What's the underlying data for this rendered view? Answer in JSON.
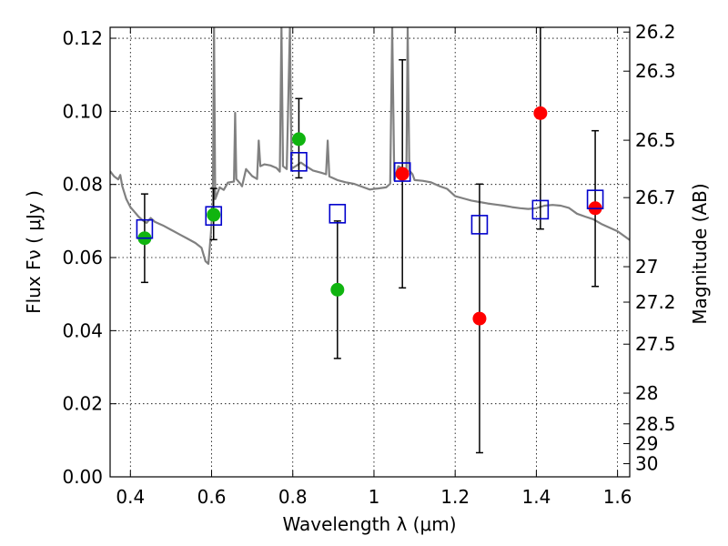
{
  "chart_data": {
    "type": "scatter",
    "xlabel": "Wavelength  λ (μm)",
    "ylabel": "Flux  Fν  ( μJy )",
    "ylabel_right": "Magnitude (AB)",
    "xlim": [
      0.35,
      1.63
    ],
    "ylim": [
      0.0,
      0.123
    ],
    "grid": true,
    "x_ticks": [
      {
        "value": 0.4,
        "label": "0.4"
      },
      {
        "value": 0.6,
        "label": "0.6"
      },
      {
        "value": 0.8,
        "label": "0.8"
      },
      {
        "value": 1.0,
        "label": "1"
      },
      {
        "value": 1.2,
        "label": "1.2"
      },
      {
        "value": 1.4,
        "label": "1.4"
      },
      {
        "value": 1.6,
        "label": "1.6"
      }
    ],
    "y_ticks": [
      {
        "value": 0.0,
        "label": "0.00"
      },
      {
        "value": 0.02,
        "label": "0.02"
      },
      {
        "value": 0.04,
        "label": "0.04"
      },
      {
        "value": 0.06,
        "label": "0.06"
      },
      {
        "value": 0.08,
        "label": "0.08"
      },
      {
        "value": 0.1,
        "label": "0.10"
      },
      {
        "value": 0.12,
        "label": "0.12"
      }
    ],
    "right_ticks": [
      {
        "flux": 0.1217,
        "label": "26.2"
      },
      {
        "flux": 0.111,
        "label": "26.3"
      },
      {
        "flux": 0.0921,
        "label": "26.5"
      },
      {
        "flux": 0.0764,
        "label": "26.7"
      },
      {
        "flux": 0.0575,
        "label": "27"
      },
      {
        "flux": 0.0478,
        "label": "27.2"
      },
      {
        "flux": 0.0363,
        "label": "27.5"
      },
      {
        "flux": 0.0229,
        "label": "28"
      },
      {
        "flux": 0.0145,
        "label": "28.5"
      },
      {
        "flux": 0.0091,
        "label": "29"
      },
      {
        "flux": 0.0036,
        "label": "30"
      }
    ],
    "series": [
      {
        "marker": "circle",
        "color": "#10b410",
        "points": [
          {
            "x": 0.435,
            "y": 0.0653,
            "yerr_low": 0.0532,
            "yerr_high": 0.0774
          },
          {
            "x": 0.605,
            "y": 0.0717,
            "yerr_low": 0.0649,
            "yerr_high": 0.0789
          },
          {
            "x": 0.815,
            "y": 0.0924,
            "yerr_low": 0.0818,
            "yerr_high": 0.1035
          },
          {
            "x": 0.91,
            "y": 0.0512,
            "yerr_low": 0.0324,
            "yerr_high": 0.07
          }
        ]
      },
      {
        "marker": "circle",
        "color": "#ff0000",
        "points": [
          {
            "x": 1.07,
            "y": 0.0829,
            "yerr_low": 0.0517,
            "yerr_high": 0.1141
          },
          {
            "x": 1.26,
            "y": 0.0433,
            "yerr_low": 0.0066,
            "yerr_high": 0.0801
          },
          {
            "x": 1.41,
            "y": 0.0995,
            "yerr_low": 0.0678,
            "yerr_high": 0.123
          },
          {
            "x": 1.545,
            "y": 0.0735,
            "yerr_low": 0.0521,
            "yerr_high": 0.0947
          }
        ]
      },
      {
        "marker": "open-square",
        "color": "#0000cc",
        "points": [
          {
            "x": 0.435,
            "y": 0.0678
          },
          {
            "x": 0.605,
            "y": 0.0714
          },
          {
            "x": 0.815,
            "y": 0.0862
          },
          {
            "x": 0.91,
            "y": 0.072
          },
          {
            "x": 1.07,
            "y": 0.0834
          },
          {
            "x": 1.26,
            "y": 0.069
          },
          {
            "x": 1.41,
            "y": 0.0731
          },
          {
            "x": 1.545,
            "y": 0.0759
          }
        ]
      }
    ],
    "model_spectrum": {
      "color": "#808080",
      "points": [
        [
          0.35,
          0.0836
        ],
        [
          0.36,
          0.0822
        ],
        [
          0.37,
          0.0814
        ],
        [
          0.375,
          0.0826
        ],
        [
          0.38,
          0.0795
        ],
        [
          0.39,
          0.076
        ],
        [
          0.4,
          0.0738
        ],
        [
          0.41,
          0.0725
        ],
        [
          0.42,
          0.0712
        ],
        [
          0.43,
          0.0702
        ],
        [
          0.44,
          0.0695
        ],
        [
          0.45,
          0.0708
        ],
        [
          0.46,
          0.0698
        ],
        [
          0.48,
          0.0688
        ],
        [
          0.5,
          0.0676
        ],
        [
          0.52,
          0.0664
        ],
        [
          0.54,
          0.0652
        ],
        [
          0.56,
          0.064
        ],
        [
          0.575,
          0.0627
        ],
        [
          0.585,
          0.059
        ],
        [
          0.592,
          0.0583
        ],
        [
          0.598,
          0.066
        ],
        [
          0.603,
          0.075
        ],
        [
          0.606,
          0.123
        ],
        [
          0.609,
          0.076
        ],
        [
          0.62,
          0.0792
        ],
        [
          0.63,
          0.0785
        ],
        [
          0.64,
          0.0805
        ],
        [
          0.655,
          0.0808
        ],
        [
          0.658,
          0.0996
        ],
        [
          0.661,
          0.0815
        ],
        [
          0.67,
          0.0803
        ],
        [
          0.675,
          0.0795
        ],
        [
          0.685,
          0.0842
        ],
        [
          0.7,
          0.0823
        ],
        [
          0.712,
          0.0815
        ],
        [
          0.716,
          0.092
        ],
        [
          0.72,
          0.085
        ],
        [
          0.73,
          0.0855
        ],
        [
          0.745,
          0.0852
        ],
        [
          0.76,
          0.0845
        ],
        [
          0.768,
          0.0835
        ],
        [
          0.772,
          0.123
        ],
        [
          0.776,
          0.085
        ],
        [
          0.785,
          0.0842
        ],
        [
          0.793,
          0.123
        ],
        [
          0.797,
          0.084
        ],
        [
          0.8,
          0.0845
        ],
        [
          0.81,
          0.0852
        ],
        [
          0.82,
          0.086
        ],
        [
          0.83,
          0.0852
        ],
        [
          0.85,
          0.0838
        ],
        [
          0.87,
          0.0832
        ],
        [
          0.882,
          0.0828
        ],
        [
          0.886,
          0.092
        ],
        [
          0.89,
          0.0822
        ],
        [
          0.91,
          0.0812
        ],
        [
          0.93,
          0.0806
        ],
        [
          0.95,
          0.0802
        ],
        [
          0.97,
          0.0794
        ],
        [
          0.99,
          0.0786
        ],
        [
          1.0,
          0.0788
        ],
        [
          1.01,
          0.0789
        ],
        [
          1.03,
          0.0792
        ],
        [
          1.04,
          0.0802
        ],
        [
          1.045,
          0.123
        ],
        [
          1.05,
          0.0812
        ],
        [
          1.06,
          0.085
        ],
        [
          1.07,
          0.0844
        ],
        [
          1.08,
          0.084
        ],
        [
          1.083,
          0.123
        ],
        [
          1.087,
          0.0838
        ],
        [
          1.095,
          0.0828
        ],
        [
          1.1,
          0.0812
        ],
        [
          1.12,
          0.081
        ],
        [
          1.14,
          0.0806
        ],
        [
          1.16,
          0.0796
        ],
        [
          1.18,
          0.0788
        ],
        [
          1.2,
          0.0768
        ],
        [
          1.22,
          0.0762
        ],
        [
          1.24,
          0.0756
        ],
        [
          1.26,
          0.0752
        ],
        [
          1.28,
          0.0748
        ],
        [
          1.3,
          0.0745
        ],
        [
          1.32,
          0.0742
        ],
        [
          1.34,
          0.0738
        ],
        [
          1.36,
          0.0735
        ],
        [
          1.38,
          0.0733
        ],
        [
          1.4,
          0.0735
        ],
        [
          1.42,
          0.0742
        ],
        [
          1.44,
          0.0744
        ],
        [
          1.46,
          0.0742
        ],
        [
          1.48,
          0.0736
        ],
        [
          1.5,
          0.072
        ],
        [
          1.52,
          0.0712
        ],
        [
          1.54,
          0.0705
        ],
        [
          1.56,
          0.0692
        ],
        [
          1.58,
          0.0682
        ],
        [
          1.6,
          0.0672
        ],
        [
          1.63,
          0.0648
        ]
      ]
    }
  }
}
